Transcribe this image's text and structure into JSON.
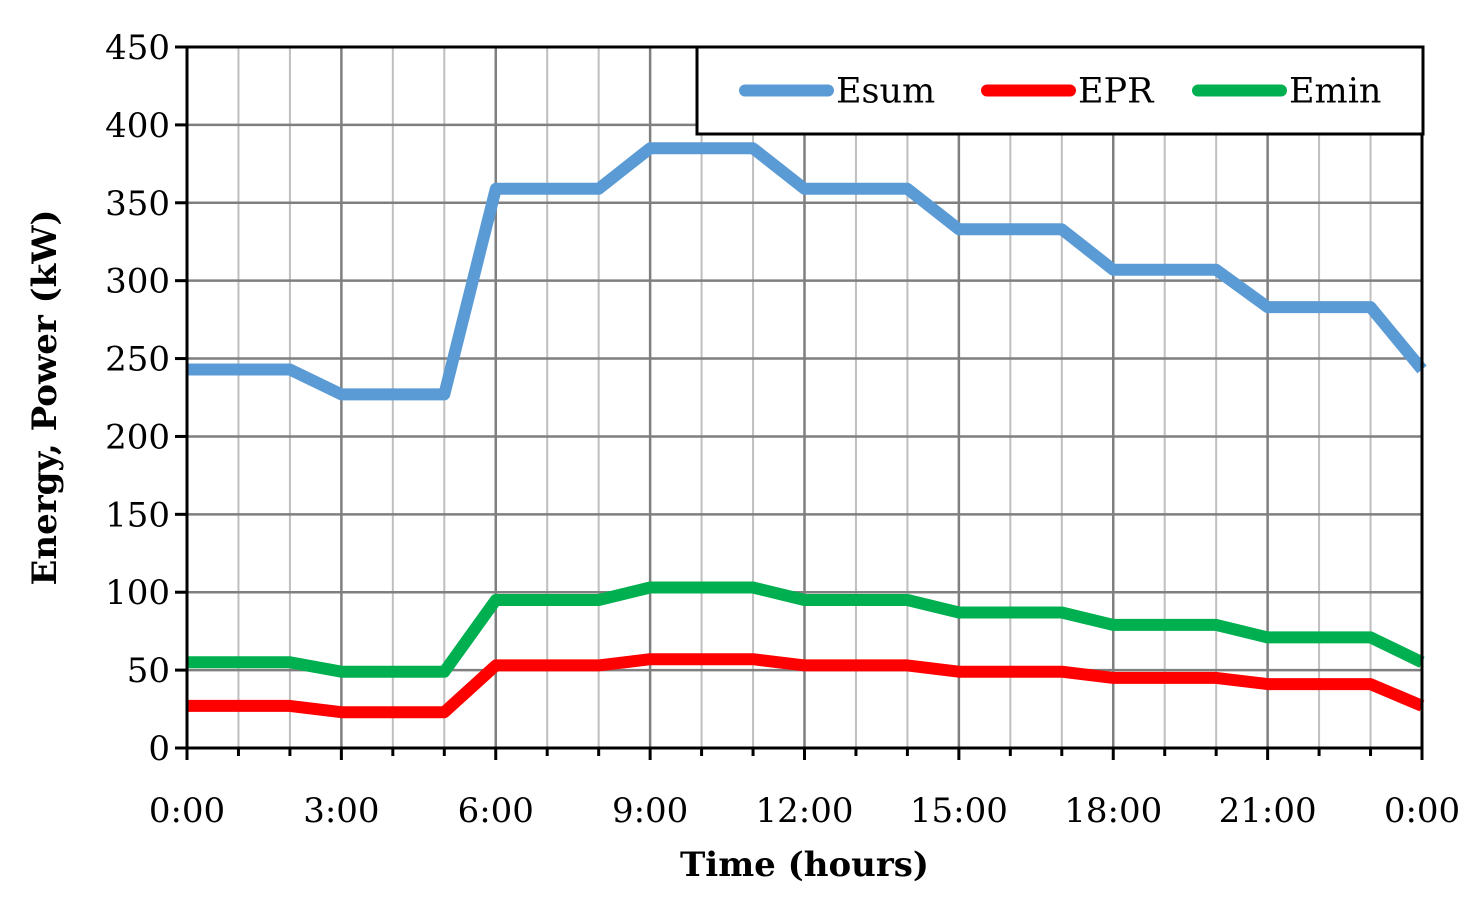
{
  "chart_data": {
    "type": "line",
    "xlabel": "Time (hours)",
    "ylabel": "Energy, Power (kW)",
    "x_tick_labels": [
      "0:00",
      "3:00",
      "6:00",
      "9:00",
      "12:00",
      "15:00",
      "18:00",
      "21:00",
      "0:00"
    ],
    "x_hours": [
      0,
      1,
      2,
      3,
      4,
      5,
      6,
      7,
      8,
      9,
      10,
      11,
      12,
      13,
      14,
      15,
      16,
      17,
      18,
      19,
      20,
      21,
      22,
      23,
      24
    ],
    "x_range_hours": [
      0,
      24
    ],
    "x_tick_step_hours": 3,
    "x_minor_grid_step_hours": 1,
    "ylim": [
      0,
      450
    ],
    "y_tick_step": 50,
    "y_ticks": [
      "0",
      "50",
      "100",
      "150",
      "200",
      "250",
      "300",
      "350",
      "400",
      "450"
    ],
    "grid": true,
    "legend_position": "top-right",
    "series": [
      {
        "name": "Esum",
        "color": "#5B9BD5",
        "values": [
          243,
          243,
          243,
          227,
          227,
          227,
          359,
          359,
          359,
          385,
          385,
          385,
          359,
          359,
          359,
          333,
          333,
          333,
          307,
          307,
          307,
          283,
          283,
          283,
          243
        ]
      },
      {
        "name": "EPR",
        "color": "#FF0000",
        "values": [
          27,
          27,
          27,
          23,
          23,
          23,
          53,
          53,
          53,
          57,
          57,
          57,
          53,
          53,
          53,
          49,
          49,
          49,
          45,
          45,
          45,
          41,
          41,
          41,
          27
        ]
      },
      {
        "name": "Emin",
        "color": "#00B050",
        "values": [
          55,
          55,
          55,
          49,
          49,
          49,
          95,
          95,
          95,
          103,
          103,
          103,
          95,
          95,
          95,
          87,
          87,
          87,
          79,
          79,
          79,
          71,
          71,
          71,
          55
        ]
      }
    ]
  }
}
